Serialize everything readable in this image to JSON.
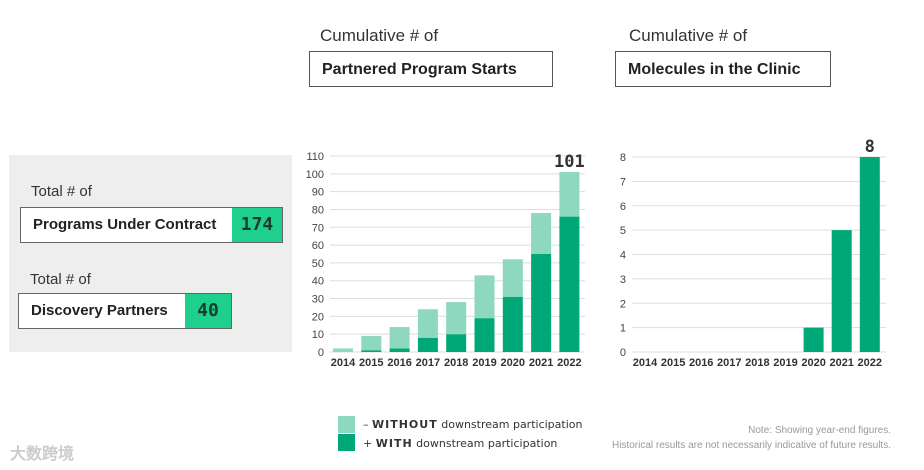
{
  "kpis": [
    {
      "prefix": "Total # of",
      "label": "Programs Under Contract",
      "value": "174"
    },
    {
      "prefix": "Total # of",
      "label": "Discovery Partners",
      "value": "40"
    }
  ],
  "colors": {
    "with": "#00a878",
    "without": "#8ed8c0",
    "kpi": "#1fd08c"
  },
  "legend": {
    "without_sign": "–",
    "without_bold": "WITHOUT",
    "without_rest": " downstream participation",
    "with_sign": "+",
    "with_bold": "WITH",
    "with_rest": " downstream participation"
  },
  "notes": [
    "Note: Showing year-end figures.",
    "Historical results are not necessarily indicative of future results."
  ],
  "watermark": "大数跨境",
  "chart_data": [
    {
      "type": "bar",
      "stacked": true,
      "subtitle": "Cumulative # of",
      "title": "Partnered Program Starts",
      "categories": [
        "2014",
        "2015",
        "2016",
        "2017",
        "2018",
        "2019",
        "2020",
        "2021",
        "2022"
      ],
      "series": [
        {
          "name": "WITH downstream participation",
          "values": [
            0,
            1,
            2,
            8,
            10,
            19,
            31,
            55,
            76
          ]
        },
        {
          "name": "WITHOUT downstream participation",
          "values": [
            2,
            8,
            12,
            16,
            18,
            24,
            21,
            23,
            25
          ]
        }
      ],
      "totals": [
        2,
        9,
        14,
        24,
        28,
        43,
        52,
        78,
        101
      ],
      "data_label": "101",
      "ylim": [
        0,
        110
      ],
      "yticks": [
        0,
        10,
        20,
        30,
        40,
        50,
        60,
        70,
        80,
        90,
        100,
        110
      ],
      "grid": true
    },
    {
      "type": "bar",
      "subtitle": "Cumulative # of",
      "title": "Molecules in the Clinic",
      "categories": [
        "2014",
        "2015",
        "2016",
        "2017",
        "2018",
        "2019",
        "2020",
        "2021",
        "2022"
      ],
      "series": [
        {
          "name": "Molecules in the Clinic",
          "values": [
            0,
            0,
            0,
            0,
            0,
            0,
            1,
            5,
            8
          ]
        }
      ],
      "data_label": "8",
      "ylim": [
        0,
        8
      ],
      "yticks": [
        0,
        1,
        2,
        3,
        4,
        5,
        6,
        7,
        8
      ],
      "grid": true
    }
  ]
}
